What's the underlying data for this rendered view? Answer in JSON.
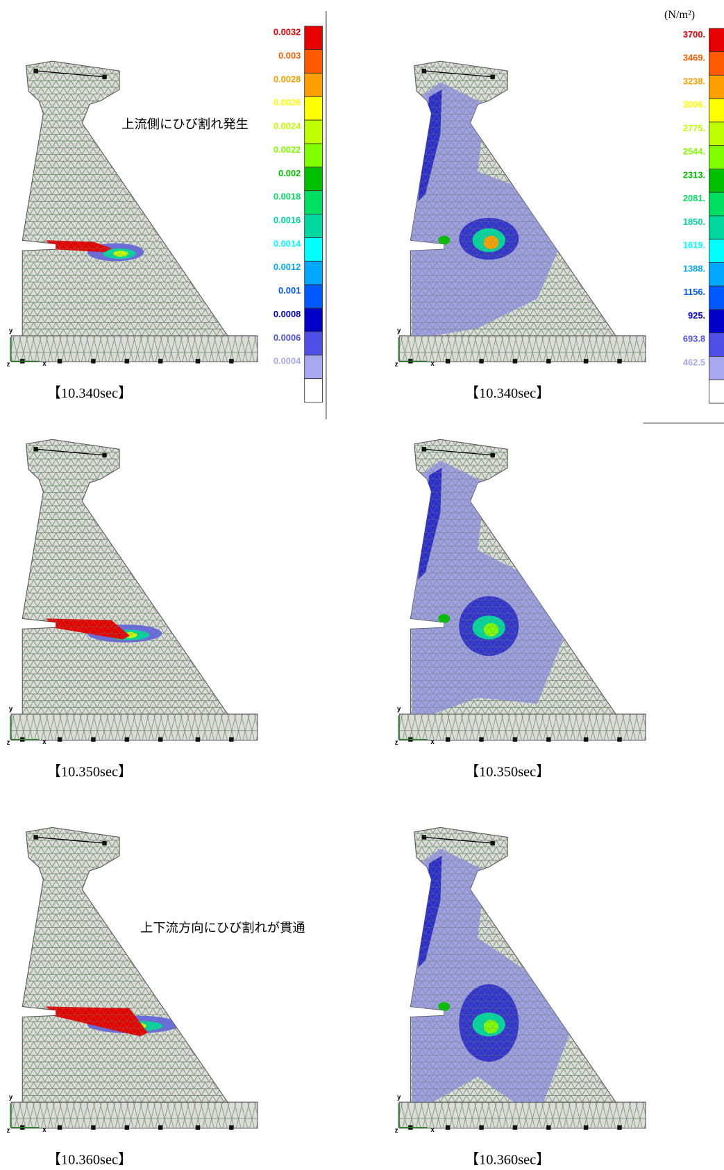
{
  "legend_strain": {
    "labels": [
      "0.0032",
      "0.003",
      "0.0028",
      "0.0026",
      "0.0024",
      "0.0022",
      "0.002",
      "0.0018",
      "0.0016",
      "0.0014",
      "0.0012",
      "0.001",
      "0.0008",
      "0.0006",
      "0.0004"
    ],
    "colors": [
      "#e60000",
      "#ff5a00",
      "#ffa000",
      "#ffff00",
      "#c0ff00",
      "#80ff00",
      "#00c000",
      "#00e060",
      "#00d8a0",
      "#00ffff",
      "#00a8ff",
      "#0058ff",
      "#0000c8",
      "#5050e8",
      "#a8a8f0",
      "#ffffff"
    ]
  },
  "legend_stress": {
    "unit": "(N/m²)",
    "labels": [
      "3700.",
      "3469.",
      "3238.",
      "3006.",
      "2775.",
      "2544.",
      "2313.",
      "2081.",
      "1850.",
      "1619.",
      "1388.",
      "1156.",
      "925.",
      "693.8",
      "462.5"
    ],
    "colors": [
      "#e60000",
      "#ff5a00",
      "#ffa000",
      "#ffff00",
      "#c0ff00",
      "#80ff00",
      "#00c000",
      "#00e060",
      "#00d8a0",
      "#00ffff",
      "#00a8ff",
      "#0058ff",
      "#0000c8",
      "#5050e8",
      "#a8a8f0",
      "#ffffff"
    ]
  },
  "captions": [
    "【10.340sec】",
    "【10.340sec】",
    "【10.350sec】",
    "【10.350sec】",
    "【10.360sec】",
    "【10.360sec】"
  ],
  "annotations": [
    "上流側にひび割れ発生",
    "上下流方向にひび割れが貫通"
  ],
  "triad": {
    "x": "x",
    "y": "y",
    "z": "z"
  }
}
